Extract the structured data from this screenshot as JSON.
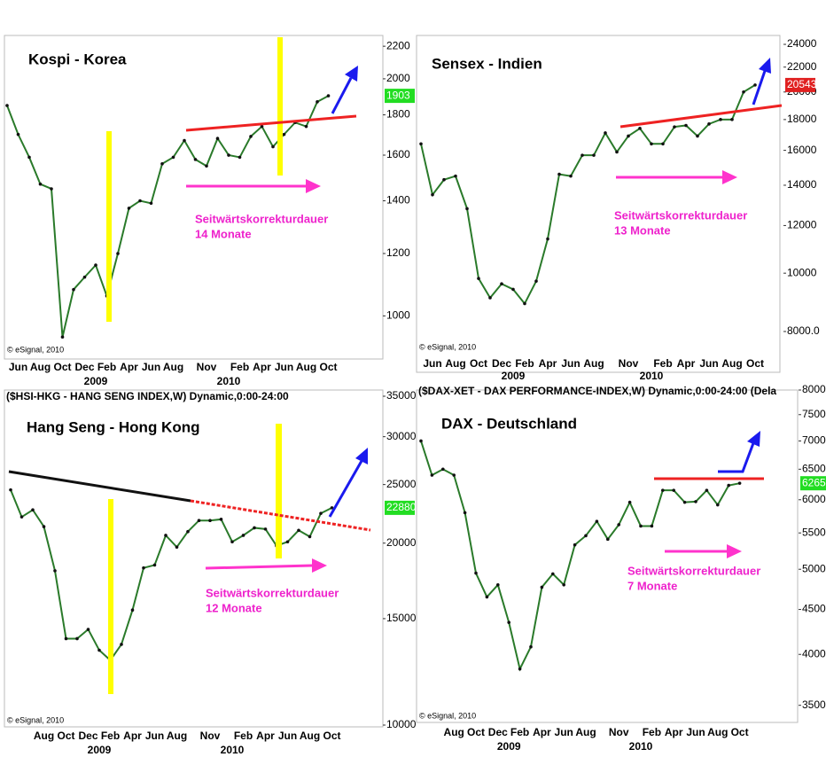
{
  "chart_data": [
    {
      "type": "line",
      "title": "Kospi - Korea",
      "log_scale": true,
      "color": "#2a7a2a",
      "categories": [
        null,
        "Jun",
        null,
        "Aug",
        null,
        "Oct",
        null,
        "Dec",
        null,
        "Feb",
        null,
        "Apr",
        null,
        "Jun",
        null,
        "Aug",
        null,
        null,
        "Nov",
        null,
        null,
        "Feb",
        null,
        "Apr",
        null,
        "Jun",
        null,
        "Aug",
        null,
        "Oct"
      ],
      "values": [
        1850,
        1700,
        1590,
        1470,
        1450,
        940,
        1080,
        1120,
        1160,
        1060,
        1200,
        1370,
        1400,
        1390,
        1560,
        1590,
        1670,
        1580,
        1550,
        1680,
        1600,
        1590,
        1690,
        1740,
        1640,
        1700,
        1760,
        1740,
        1870,
        1903
      ],
      "year_labels": [
        "2009",
        "2010"
      ],
      "ylim": [
        900,
        2300
      ],
      "yticks": [
        1000,
        1200,
        1400,
        1600,
        1800,
        2000,
        2200
      ],
      "price_tag": {
        "value": 1903,
        "color": "#22dd22"
      },
      "annotations": [
        "Seitwärtskorrekturdauer",
        "14 Monate"
      ],
      "source": "© eSignal, 2010"
    },
    {
      "type": "line",
      "title": "Sensex - Indien",
      "log_scale": true,
      "color": "#2a7a2a",
      "categories": [
        null,
        "Jun",
        null,
        "Aug",
        null,
        "Oct",
        null,
        "Dec",
        null,
        "Feb",
        null,
        "Apr",
        null,
        "Jun",
        null,
        "Aug",
        null,
        null,
        "Nov",
        null,
        null,
        "Feb",
        null,
        "Apr",
        null,
        "Jun",
        null,
        "Aug",
        null,
        "Oct"
      ],
      "values": [
        16400,
        13500,
        14300,
        14500,
        12800,
        9800,
        9100,
        9600,
        9400,
        8900,
        9700,
        11400,
        14600,
        14500,
        15700,
        15700,
        17100,
        15900,
        16900,
        17400,
        16400,
        16400,
        17500,
        17600,
        16900,
        17700,
        18000,
        18000,
        20000,
        20543
      ],
      "year_labels": [
        "2009",
        "2010"
      ],
      "ylim": [
        7500,
        25000
      ],
      "yticks": [
        {
          "value": 8000,
          "label": "8000.0"
        },
        10000,
        12000,
        14000,
        16000,
        18000,
        20000,
        22000,
        24000
      ],
      "price_tag": {
        "value": 20543,
        "color": "#e02020"
      },
      "annotations": [
        "Seitwärtskorrekturdauer",
        "13 Monate"
      ],
      "source": "© eSignal, 2010"
    },
    {
      "type": "line",
      "title": "Hang Seng - Hong Kong",
      "log_scale": true,
      "color": "#2a7a2a",
      "header": "($HSI-HKG - HANG SENG INDEX,W) Dynamic,0:00-24:00",
      "categories": [
        null,
        null,
        null,
        "Aug",
        null,
        "Oct",
        null,
        "Dec",
        null,
        "Feb",
        null,
        "Apr",
        null,
        "Jun",
        null,
        "Aug",
        null,
        null,
        "Nov",
        null,
        null,
        "Feb",
        null,
        "Apr",
        null,
        "Jun",
        null,
        "Aug",
        null,
        "Oct"
      ],
      "values": [
        24500,
        22100,
        22700,
        21300,
        18000,
        13900,
        13900,
        14400,
        13300,
        12800,
        13600,
        15500,
        18200,
        18400,
        20600,
        19700,
        20900,
        21800,
        21800,
        21900,
        20100,
        20600,
        21200,
        21100,
        19800,
        20100,
        21000,
        20500,
        22400,
        22880
      ],
      "year_labels": [
        "2009",
        "2010"
      ],
      "ylim": [
        10000,
        35000
      ],
      "yticks": [
        10000,
        15000,
        20000,
        25000,
        30000,
        35000
      ],
      "price_tag": {
        "value": 22880,
        "color": "#22dd22"
      },
      "annotations": [
        "Seitwärtskorrekturdauer",
        "12 Monate"
      ],
      "source": "© eSignal, 2010"
    },
    {
      "type": "line",
      "title": "DAX - Deutschland",
      "log_scale": true,
      "color": "#2a7a2a",
      "header": "($DAX-XET - DAX PERFORMANCE-INDEX,W) Dynamic,0:00-24:00 (Dela",
      "categories": [
        null,
        null,
        null,
        "Aug",
        null,
        "Oct",
        null,
        "Dec",
        null,
        "Feb",
        null,
        "Apr",
        null,
        "Jun",
        null,
        "Aug",
        null,
        null,
        "Nov",
        null,
        null,
        "Feb",
        null,
        "Apr",
        null,
        "Jun",
        null,
        "Aug",
        null,
        "Oct"
      ],
      "values": [
        7000,
        6400,
        6500,
        6400,
        5800,
        4950,
        4650,
        4800,
        4350,
        3850,
        4080,
        4770,
        4940,
        4800,
        5330,
        5460,
        5670,
        5410,
        5620,
        5960,
        5600,
        5600,
        6150,
        6150,
        5960,
        5970,
        6150,
        5920,
        6230,
        6265
      ],
      "year_labels": [
        "2009",
        "2010"
      ],
      "ylim": [
        3300,
        8000
      ],
      "yticks": [
        3500,
        4000,
        4500,
        5000,
        5500,
        6000,
        6500,
        7000,
        7500,
        8000
      ],
      "price_tag": {
        "value": 6265,
        "color": "#22dd22"
      },
      "annotations": [
        "Seitwärtskorrekturdauer",
        "7 Monate"
      ],
      "source": "© eSignal, 2010"
    }
  ]
}
